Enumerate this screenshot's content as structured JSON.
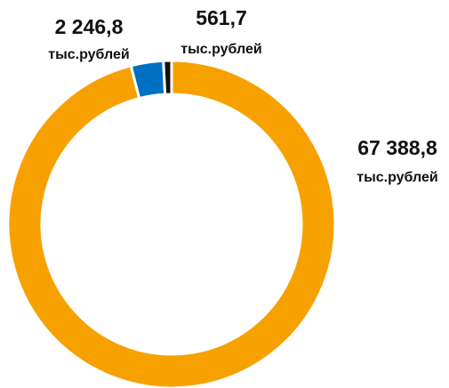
{
  "chart_data": {
    "type": "donut",
    "categories": null,
    "values": [
      67388.8,
      2246.8,
      561.7
    ],
    "value_labels": [
      "67 388,8",
      "2 246,8",
      "561,7"
    ],
    "unit": "тыс.рублей",
    "colors": [
      "#f7a100",
      "#0070c0",
      "#111111"
    ]
  }
}
